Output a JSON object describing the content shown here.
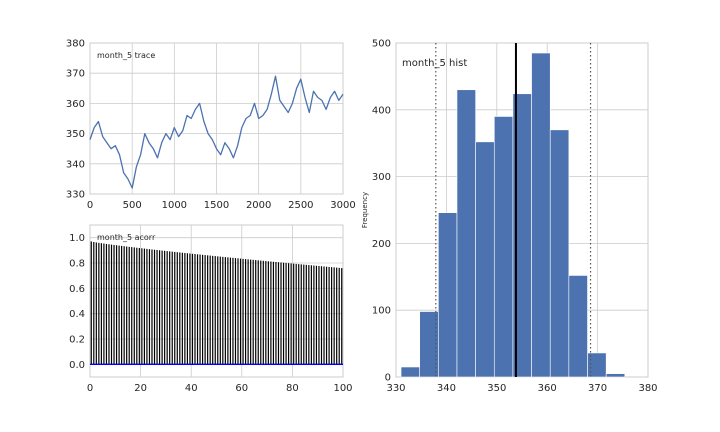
{
  "colors": {
    "series": "#4c72b0",
    "acorr_bar": "#000000",
    "acorr_zero": "#0000ff",
    "mean_line": "#000000",
    "ci_line": "#555555"
  },
  "chart_data": [
    {
      "id": "trace",
      "type": "line",
      "annotation": "month_5 trace",
      "xlim": [
        0,
        3000
      ],
      "ylim": [
        330,
        380
      ],
      "xticks": [
        0,
        500,
        1000,
        1500,
        2000,
        2500,
        3000
      ],
      "yticks": [
        330,
        340,
        350,
        360,
        370,
        380
      ],
      "grid": true,
      "series": [
        {
          "x": [
            0,
            50,
            100,
            150,
            200,
            250,
            300,
            350,
            400,
            450,
            500,
            550,
            600,
            650,
            700,
            750,
            800,
            850,
            900,
            950,
            1000,
            1050,
            1100,
            1150,
            1200,
            1250,
            1300,
            1350,
            1400,
            1450,
            1500,
            1550,
            1600,
            1650,
            1700,
            1750,
            1800,
            1850,
            1900,
            1950,
            2000,
            2050,
            2100,
            2150,
            2200,
            2250,
            2300,
            2350,
            2400,
            2450,
            2500,
            2550,
            2600,
            2650,
            2700,
            2750,
            2800,
            2850,
            2900,
            2950,
            3000
          ],
          "y": [
            348,
            352,
            354,
            349,
            347,
            345,
            346,
            343,
            337,
            335,
            332,
            339,
            343,
            350,
            347,
            345,
            342,
            347,
            350,
            348,
            352,
            349,
            351,
            356,
            355,
            358,
            360,
            354,
            350,
            348,
            345,
            343,
            347,
            345,
            342,
            346,
            352,
            355,
            356,
            360,
            355,
            356,
            358,
            363,
            369,
            361,
            359,
            357,
            360,
            365,
            368,
            362,
            357,
            364,
            362,
            361,
            358,
            362,
            364,
            361,
            363
          ]
        }
      ]
    },
    {
      "id": "acorr",
      "type": "bar",
      "annotation": "month_5 acorr",
      "xlim": [
        0,
        100
      ],
      "ylim": [
        -0.1,
        1.1
      ],
      "xticks": [
        0,
        20,
        40,
        60,
        80,
        100
      ],
      "yticks": [
        0.0,
        0.2,
        0.4,
        0.6,
        0.8,
        1.0
      ],
      "grid": true,
      "lag_start": 1,
      "lag_end": 100,
      "value_start": 0.97,
      "value_end": 0.76
    },
    {
      "id": "hist",
      "type": "bar",
      "annotation": "month_5 hist",
      "ylabel": "Frequency",
      "xlim": [
        330,
        380
      ],
      "ylim": [
        0,
        500
      ],
      "xticks": [
        330,
        340,
        350,
        360,
        370,
        380
      ],
      "yticks": [
        0,
        100,
        200,
        300,
        400,
        500
      ],
      "grid": true,
      "bin_edges": [
        331,
        334.7,
        338.4,
        342.1,
        345.8,
        349.5,
        353.2,
        356.9,
        360.6,
        364.3,
        368.0,
        371.7,
        375.4
      ],
      "counts": [
        15,
        98,
        246,
        430,
        352,
        390,
        424,
        485,
        370,
        152,
        36,
        5
      ],
      "mean": 353.8,
      "ci_low": 337.9,
      "ci_high": 368.6
    }
  ]
}
